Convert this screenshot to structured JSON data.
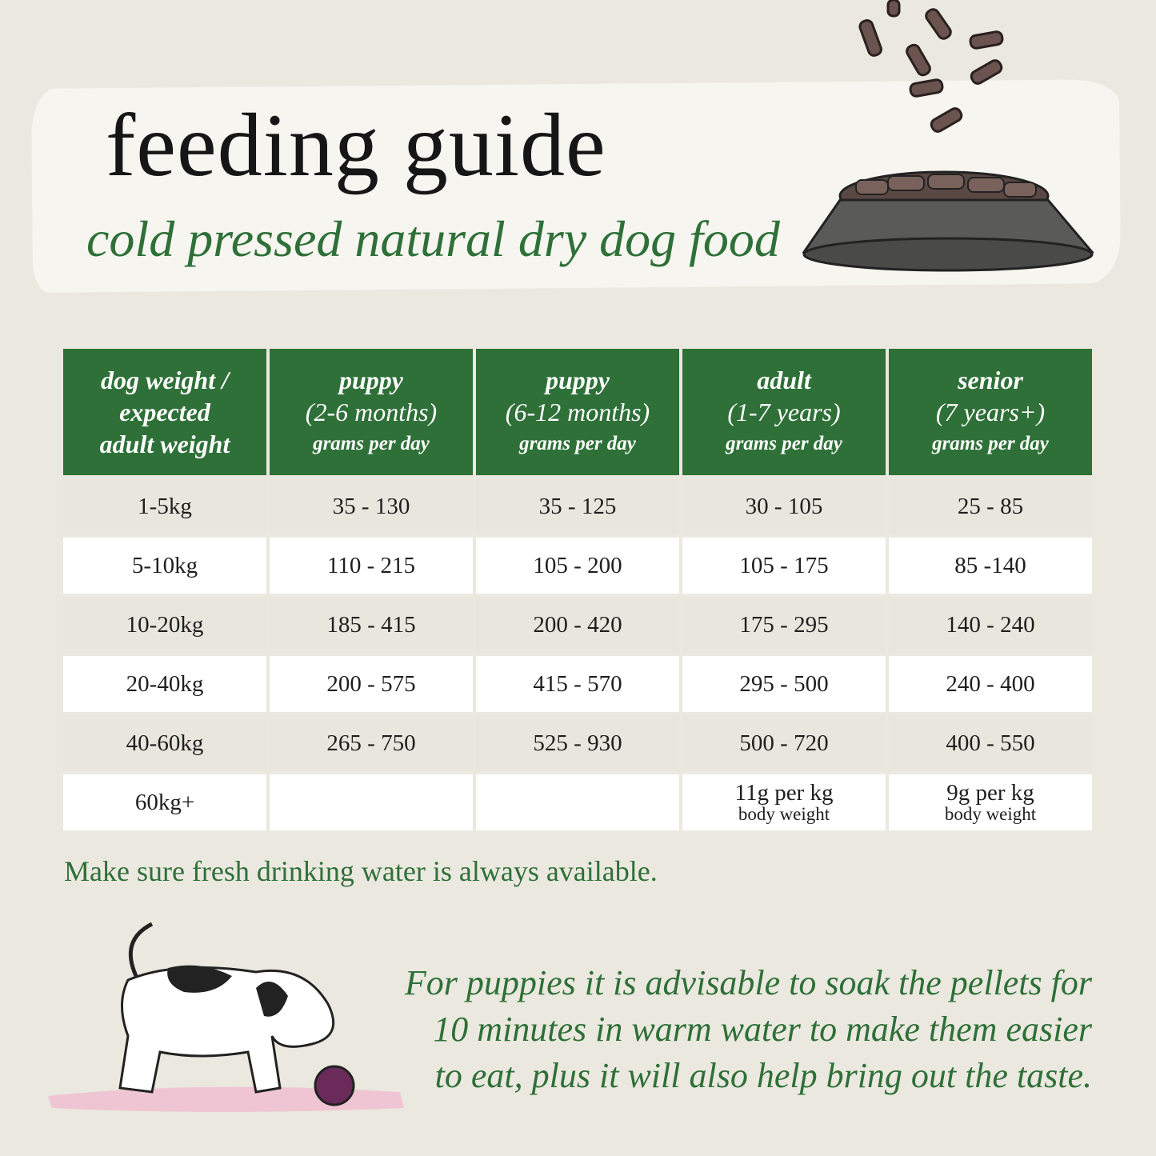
{
  "header": {
    "title": "feeding guide",
    "subtitle": "cold pressed natural dry dog food"
  },
  "table": {
    "columns": [
      {
        "lines": [
          "dog weight /",
          "expected",
          "adult weight"
        ],
        "sub": ""
      },
      {
        "lines": [
          "puppy",
          "(2-6 months)"
        ],
        "sub": "grams per day"
      },
      {
        "lines": [
          "puppy",
          "(6-12 months)"
        ],
        "sub": "grams per day"
      },
      {
        "lines": [
          "adult",
          "(1-7 years)"
        ],
        "sub": "grams per day"
      },
      {
        "lines": [
          "senior",
          "(7 years+)"
        ],
        "sub": "grams per day"
      }
    ],
    "rows": [
      [
        "1-5kg",
        "35 - 130",
        "35 - 125",
        "30 - 105",
        "25 - 85"
      ],
      [
        "5-10kg",
        "110 - 215",
        "105 - 200",
        "105 - 175",
        "85 -140"
      ],
      [
        "10-20kg",
        "185 - 415",
        "200 - 420",
        "175 - 295",
        "140 - 240"
      ],
      [
        "20-40kg",
        "200 - 575",
        "415 - 570",
        "295 - 500",
        "240 - 400"
      ],
      [
        "40-60kg",
        "265 - 750",
        "525 - 930",
        "500 - 720",
        "400 - 550"
      ]
    ],
    "last_row": {
      "weight": "60kg+",
      "puppy_2_6": "",
      "puppy_6_12": "",
      "adult": "11g per kg",
      "adult_sub": "body weight",
      "senior": "9g per kg",
      "senior_sub": "body weight"
    }
  },
  "notes": {
    "water": "Make sure fresh drinking water is always available.",
    "tip_lines": [
      "For puppies it is advisable to soak the pellets for",
      "10 minutes in warm water to make them easier",
      "to eat, plus it will also help bring out the taste."
    ]
  },
  "colors": {
    "brand_green": "#2e7038",
    "background": "#ebe8df",
    "row_alt": "#e9e6dd"
  },
  "illustrations": [
    "dog-food-bowl-illustration",
    "puppy-with-ball-illustration"
  ]
}
